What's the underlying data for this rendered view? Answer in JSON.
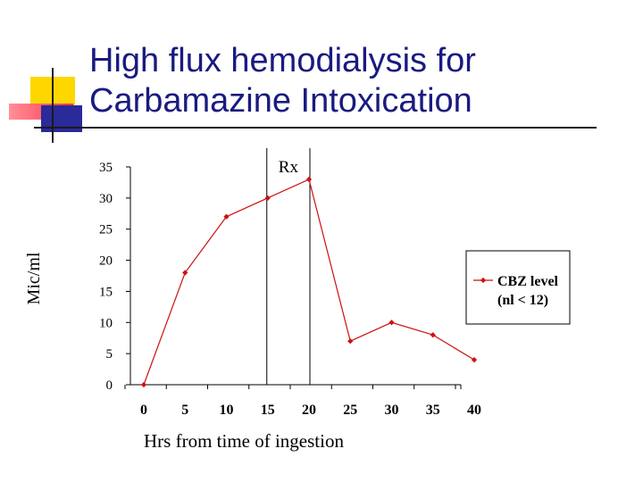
{
  "slide": {
    "title_line1": "High flux hemodialysis for",
    "title_line2": "Carbamazine Intoxication"
  },
  "colors": {
    "title": "#1a1a80",
    "accent_yellow": "#ffd700",
    "accent_red": "#ff3344",
    "accent_blue": "#2a2a9a",
    "series": "#cc1111"
  },
  "chart_data": {
    "type": "line",
    "title": "",
    "xlabel": "Hrs from time of ingestion",
    "ylabel": "Mic/ml",
    "x_ticks": [
      "0",
      "5",
      "10",
      "15",
      "20",
      "25",
      "30",
      "35",
      "40"
    ],
    "y_ticks": [
      "0",
      "5",
      "10",
      "15",
      "20",
      "25",
      "30",
      "35"
    ],
    "xlim": [
      0,
      40
    ],
    "ylim": [
      0,
      35
    ],
    "grid": false,
    "legend": {
      "position": "right",
      "series_label_line1": "CBZ level",
      "series_label_line2": "(nl < 12)"
    },
    "annotation": {
      "text": "Rx",
      "bracket_x": [
        15,
        20
      ]
    },
    "series": [
      {
        "name": "CBZ level (nl < 12)",
        "x": [
          0,
          5,
          10,
          15,
          20,
          25,
          30,
          35,
          40
        ],
        "values": [
          0,
          18,
          27,
          30,
          33,
          7,
          10,
          8,
          4
        ]
      }
    ]
  }
}
